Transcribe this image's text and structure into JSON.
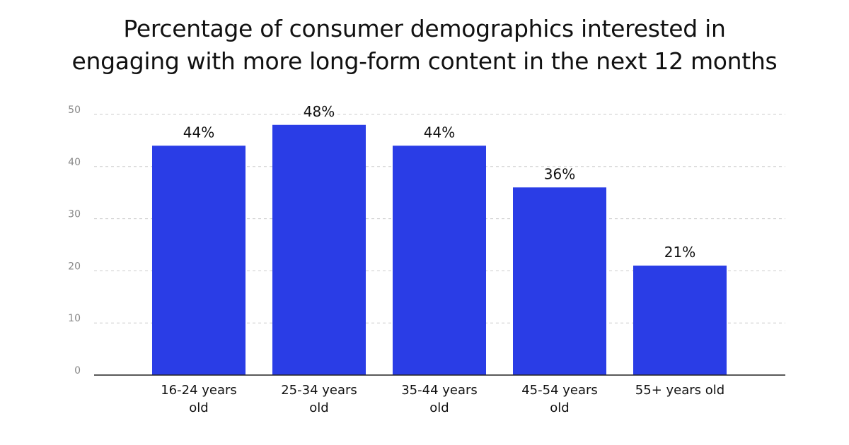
{
  "chart_data": {
    "type": "bar",
    "title_lines": [
      "Percentage of consumer demographics interested in",
      "engaging with more long-form content in the next 12 months"
    ],
    "categories": [
      [
        "16-24 years",
        "old"
      ],
      [
        "25-34 years",
        "old"
      ],
      [
        "35-44 years",
        "old"
      ],
      [
        "45-54 years",
        "old"
      ],
      [
        "55+ years old"
      ]
    ],
    "values": [
      44,
      48,
      44,
      36,
      21
    ],
    "data_labels": [
      "44%",
      "48%",
      "44%",
      "36%",
      "21%"
    ],
    "yticks": [
      0,
      10,
      20,
      30,
      40,
      50
    ],
    "ylim": [
      0,
      50
    ],
    "grid": true,
    "bar_color": "#2a3de6",
    "grid_color": "#cccccc",
    "axis_color": "#222222"
  }
}
